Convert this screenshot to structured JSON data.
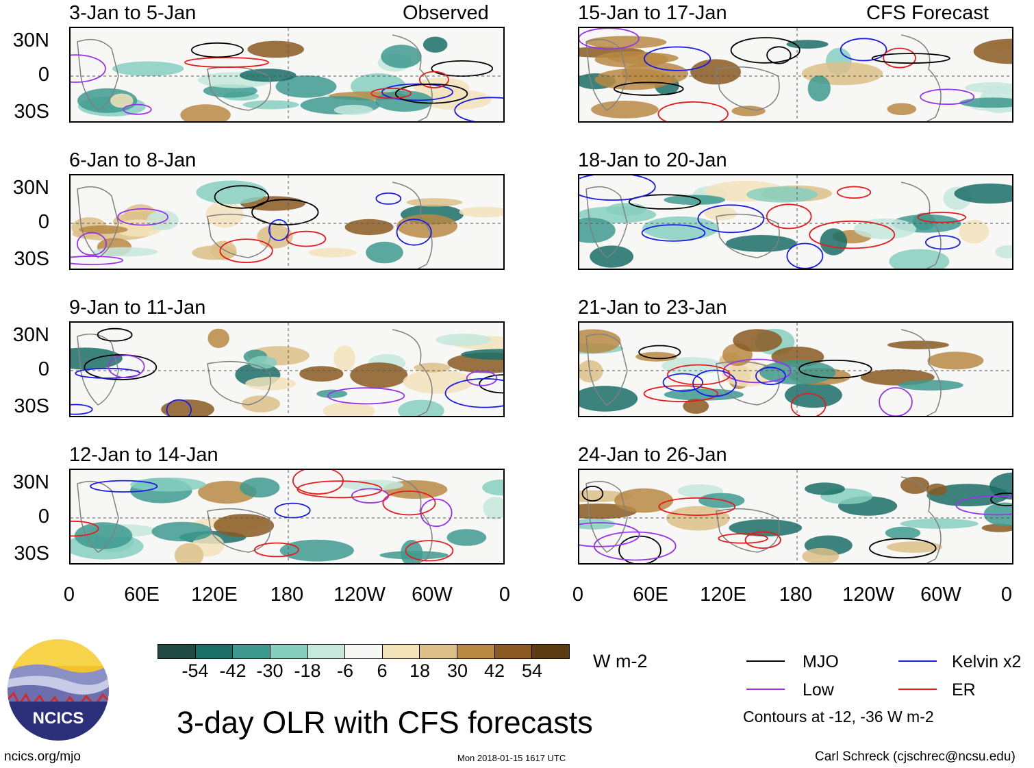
{
  "panels": [
    {
      "title": "3-Jan to 5-Jan",
      "label": "Observed"
    },
    {
      "title": "6-Jan to 8-Jan",
      "label": ""
    },
    {
      "title": "9-Jan to 11-Jan",
      "label": ""
    },
    {
      "title": "12-Jan to 14-Jan",
      "label": ""
    },
    {
      "title": "15-Jan to 17-Jan",
      "label": "CFS Forecast"
    },
    {
      "title": "18-Jan to 20-Jan",
      "label": ""
    },
    {
      "title": "21-Jan to 23-Jan",
      "label": ""
    },
    {
      "title": "24-Jan to 26-Jan",
      "label": ""
    }
  ],
  "lat_labels": [
    "30N",
    "0",
    "30S"
  ],
  "lon_labels": [
    "0",
    "60E",
    "120E",
    "180",
    "120W",
    "60W",
    "0"
  ],
  "colorbar": {
    "colors": [
      "#1f4a44",
      "#1a6e66",
      "#3e9a8f",
      "#86cfbf",
      "#c6e8dd",
      "#f7f7f5",
      "#f3e3bb",
      "#dcc088",
      "#b98944",
      "#8a5a22",
      "#5c3b15"
    ],
    "labels": [
      "-54",
      "-42",
      "-30",
      "-18",
      "-6",
      "6",
      "18",
      "30",
      "42",
      "54"
    ],
    "units": "W m-2"
  },
  "legend": {
    "items": [
      {
        "name": "MJO",
        "color": "#000000"
      },
      {
        "name": "Kelvin x2",
        "color": "#1a1ae6"
      },
      {
        "name": "Low",
        "color": "#9933ee"
      },
      {
        "name": "ER",
        "color": "#e61a1a"
      }
    ],
    "note": "Contours at -12, -36 W m-2"
  },
  "title": "3-day OLR with CFS forecasts",
  "logo_text": "NCICS",
  "footer": {
    "left": "ncics.org/mjo",
    "center": "Mon 2018-01-15 1617 UTC",
    "right": "Carl Schreck (cjschrec@ncsu.edu)"
  }
}
